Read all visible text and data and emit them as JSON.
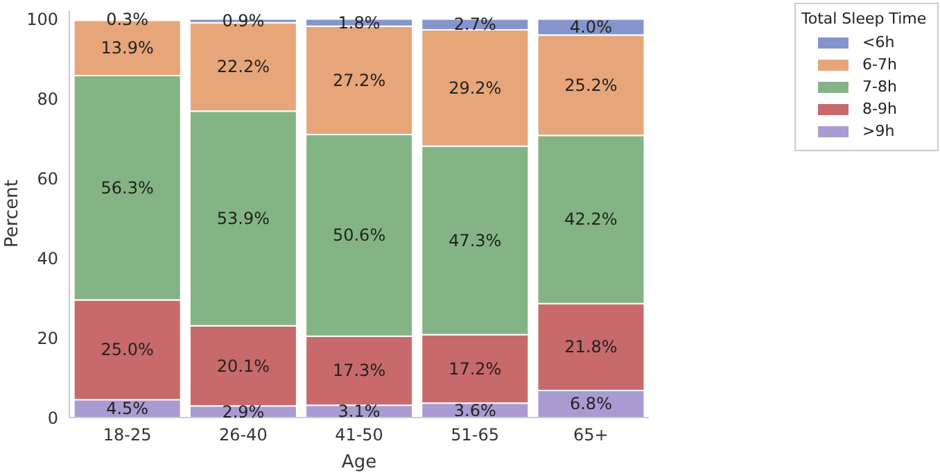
{
  "chart_data": {
    "type": "bar",
    "stacked": true,
    "xlabel": "Age",
    "ylabel": "Percent",
    "legend_title": "Total Sleep Time",
    "legend": "top right",
    "categories": [
      "18-25",
      "26-40",
      "41-50",
      "51-65",
      "65+"
    ],
    "ylim": [
      0,
      102
    ],
    "yticks": [
      0,
      20,
      40,
      60,
      80,
      100
    ],
    "series": [
      {
        "name": ">9h",
        "color": "#a99bd2",
        "values": [
          4.5,
          2.9,
          3.1,
          3.6,
          6.8
        ],
        "value_labels": [
          "4.5%",
          "2.9%",
          "3.1%",
          "3.6%",
          "6.8%"
        ]
      },
      {
        "name": "8-9h",
        "color": "#c8696b",
        "values": [
          25.0,
          20.1,
          17.3,
          17.2,
          21.8
        ],
        "value_labels": [
          "25.0%",
          "20.1%",
          "17.3%",
          "17.2%",
          "21.8%"
        ]
      },
      {
        "name": "7-8h",
        "color": "#84b485",
        "values": [
          56.3,
          53.9,
          50.6,
          47.3,
          42.2
        ],
        "value_labels": [
          "56.3%",
          "53.9%",
          "50.6%",
          "47.3%",
          "42.2%"
        ]
      },
      {
        "name": "6-7h",
        "color": "#e7a57a",
        "values": [
          13.9,
          22.2,
          27.2,
          29.2,
          25.2
        ],
        "value_labels": [
          "13.9%",
          "22.2%",
          "27.2%",
          "29.2%",
          "25.2%"
        ]
      },
      {
        "name": "<6h",
        "color": "#8595cc",
        "values": [
          0.3,
          0.9,
          1.8,
          2.7,
          4.0
        ],
        "value_labels": [
          "0.3%",
          "0.9%",
          "1.8%",
          "2.7%",
          "4.0%"
        ]
      }
    ]
  }
}
